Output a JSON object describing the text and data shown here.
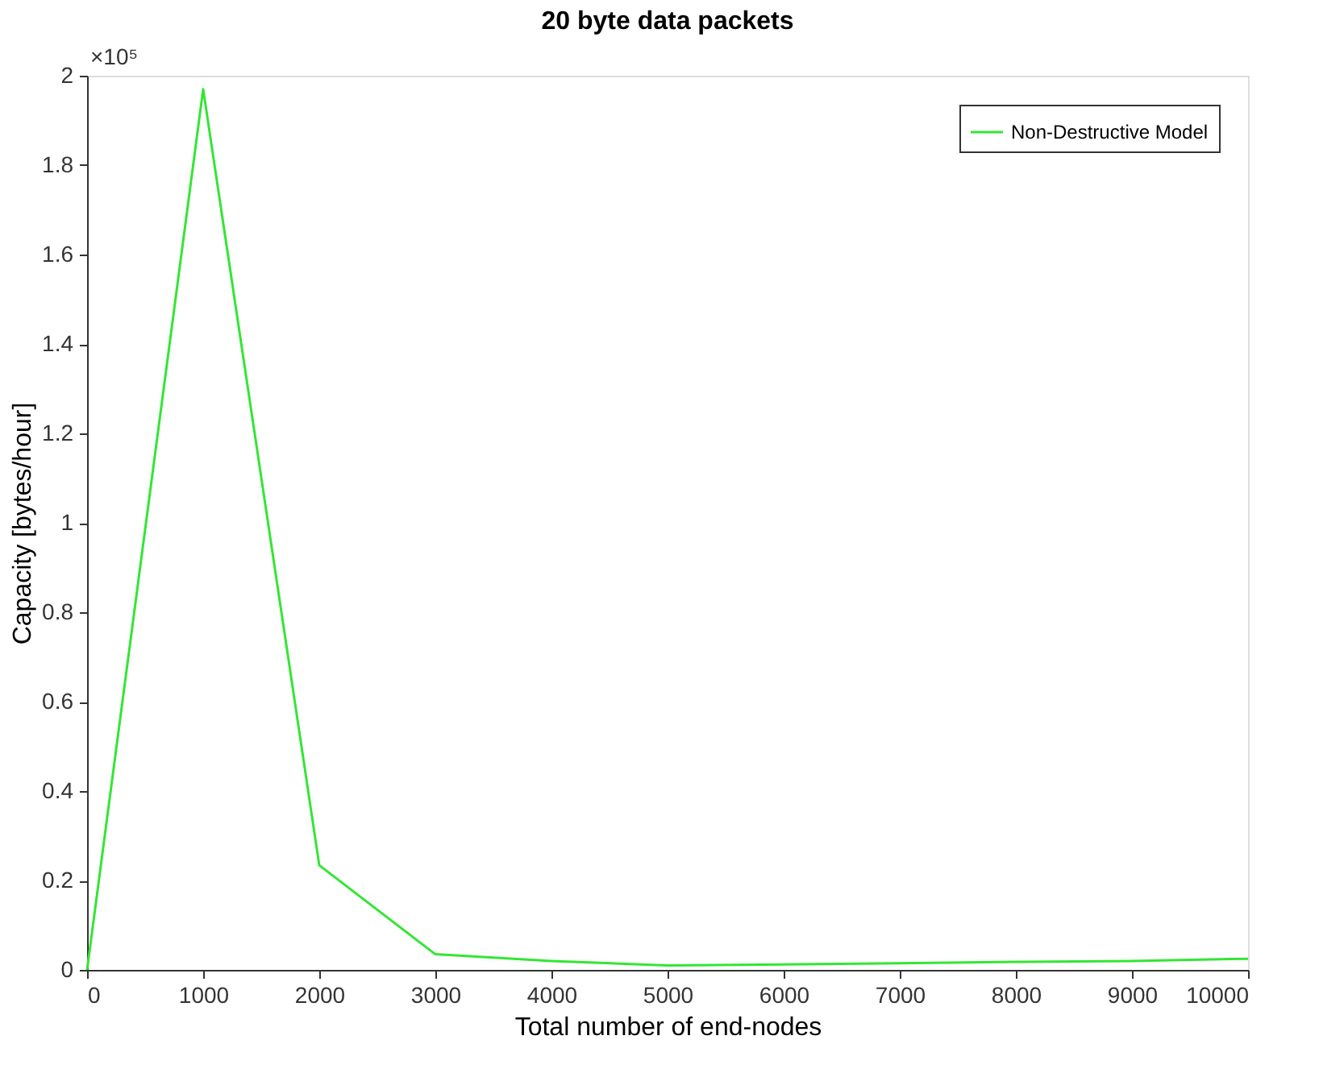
{
  "chart_data": {
    "type": "line",
    "title": "20 byte data packets",
    "xlabel": "Total number of end-nodes",
    "ylabel": "Capacity [bytes/hour]",
    "x": [
      0,
      1000,
      2000,
      3000,
      4000,
      5000,
      6000,
      7000,
      8000,
      9000,
      10000
    ],
    "series": [
      {
        "name": "Non-Destructive Model",
        "color": "#33e633",
        "values": [
          0,
          1.97,
          0.234,
          0.035,
          0.02,
          0.01,
          0.012,
          0.015,
          0.018,
          0.02,
          0.025
        ]
      }
    ],
    "xlim": [
      0,
      10000
    ],
    "xticks": [
      0,
      1000,
      2000,
      3000,
      4000,
      5000,
      6000,
      7000,
      8000,
      9000,
      10000
    ],
    "ylim": [
      0,
      2
    ],
    "yticks": [
      0,
      0.2,
      0.4,
      0.6,
      0.8,
      1,
      1.2,
      1.4,
      1.6,
      1.8,
      2
    ],
    "annotations": [
      "×10⁵"
    ],
    "legend": "top right",
    "grid": false,
    "line_style": "solid",
    "marker": "none"
  }
}
